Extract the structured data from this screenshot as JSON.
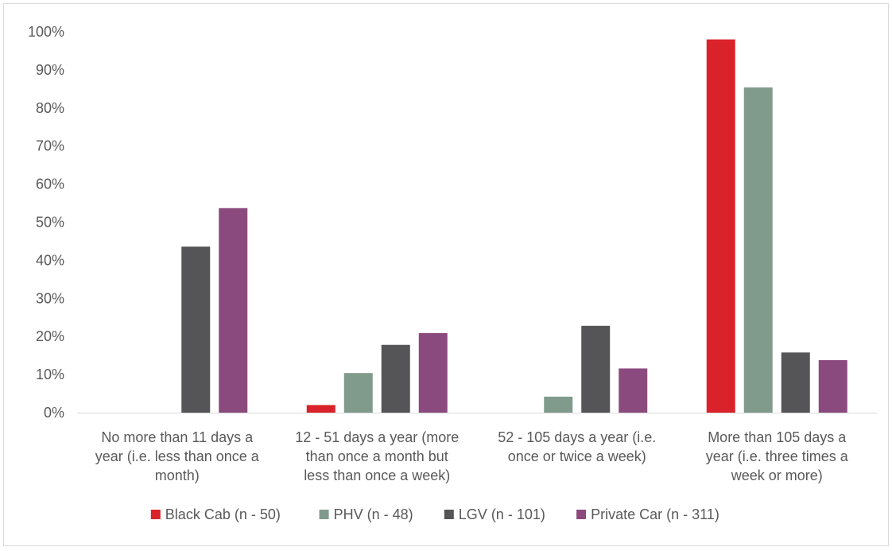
{
  "chart_data": {
    "type": "bar",
    "title": "",
    "xlabel": "",
    "ylabel": "",
    "ylim": [
      0,
      100
    ],
    "yticks": [
      "0%",
      "10%",
      "20%",
      "30%",
      "40%",
      "50%",
      "60%",
      "70%",
      "80%",
      "90%",
      "100%"
    ],
    "grid": false,
    "legend_position": "bottom",
    "categories": [
      [
        "No more than 11 days a",
        "year (i.e. less than once a",
        "month)"
      ],
      [
        "12 - 51 days a year (more",
        "than once a month but",
        "less than once a week)"
      ],
      [
        "52 - 105 days a year (i.e.",
        "once or twice a week)"
      ],
      [
        "More than 105 days a",
        "year (i.e. three times a",
        "week or more)"
      ]
    ],
    "series": [
      {
        "name": "Black Cab (n - 50)",
        "color": "#d9222a",
        "values": [
          0,
          2,
          0,
          98
        ]
      },
      {
        "name": "PHV (n - 48)",
        "color": "#809b8c",
        "values": [
          0,
          10.4,
          4.2,
          85.4
        ]
      },
      {
        "name": "LGV (n - 101)",
        "color": "#555557",
        "values": [
          43.6,
          17.8,
          22.8,
          15.8
        ]
      },
      {
        "name": "Private Car (n - 311)",
        "color": "#8b4a7e",
        "values": [
          53.7,
          20.9,
          11.6,
          13.8
        ]
      }
    ]
  }
}
